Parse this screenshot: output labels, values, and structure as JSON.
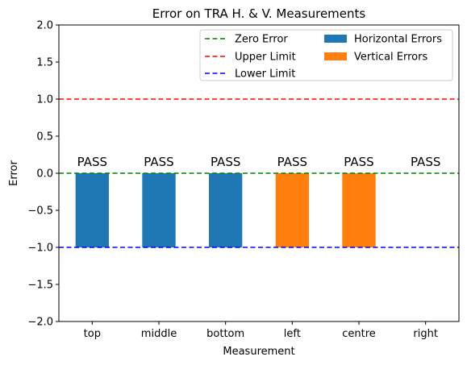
{
  "chart_data": {
    "type": "bar",
    "title": "Error on TRA H. & V. Measurements",
    "xlabel": "Measurement",
    "ylabel": "Error",
    "ylim": [
      -2.0,
      2.0
    ],
    "yticks": [
      "−2.0",
      "−1.5",
      "−1.0",
      "−0.5",
      "0.0",
      "0.5",
      "1.0",
      "1.5",
      "2.0"
    ],
    "ytick_values": [
      -2.0,
      -1.5,
      -1.0,
      -0.5,
      0.0,
      0.5,
      1.0,
      1.5,
      2.0
    ],
    "categories": [
      "top",
      "middle",
      "bottom",
      "left",
      "centre",
      "right"
    ],
    "series": [
      {
        "name": "Horizontal Errors",
        "color": "#1f77b4",
        "values": [
          -1.0,
          -1.0,
          -1.0,
          null,
          null,
          null
        ]
      },
      {
        "name": "Vertical Errors",
        "color": "#ff7f0e",
        "values": [
          null,
          null,
          null,
          -1.0,
          -1.0,
          null
        ]
      }
    ],
    "reference_lines": [
      {
        "name": "Zero Error",
        "value": 0.0,
        "color": "#008000",
        "style": "dashed"
      },
      {
        "name": "Upper Limit",
        "value": 1.0,
        "color": "#ff0000",
        "style": "dashed"
      },
      {
        "name": "Lower Limit",
        "value": -1.0,
        "color": "#0000ff",
        "style": "dashed"
      }
    ],
    "annotations": [
      "PASS",
      "PASS",
      "PASS",
      "PASS",
      "PASS",
      "PASS"
    ],
    "annotation_y": 0.1,
    "legend": {
      "placement": "upper-right",
      "columns": [
        [
          "Zero Error",
          "Upper Limit",
          "Lower Limit"
        ],
        [
          "Horizontal Errors",
          "Vertical Errors"
        ]
      ]
    },
    "grid": false
  }
}
